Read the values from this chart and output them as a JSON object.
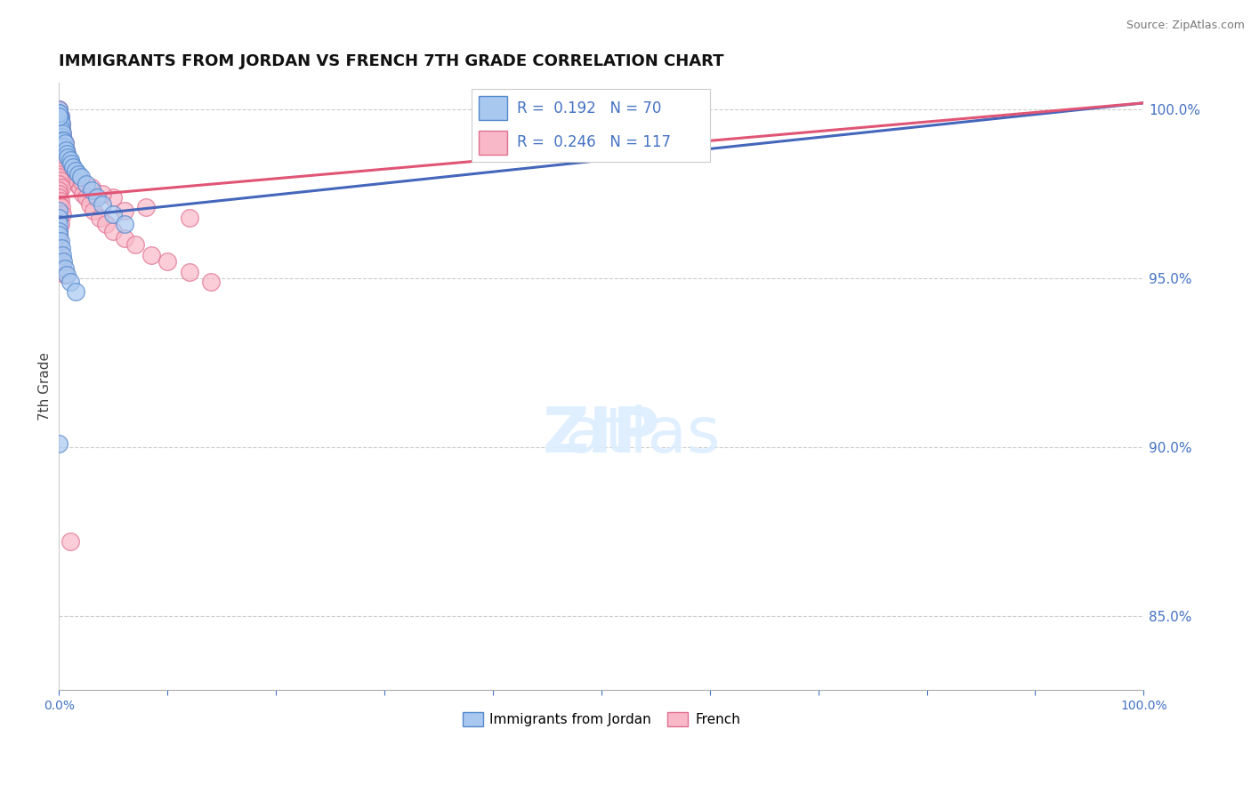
{
  "title": "IMMIGRANTS FROM JORDAN VS FRENCH 7TH GRADE CORRELATION CHART",
  "source": "Source: ZipAtlas.com",
  "ylabel": "7th Grade",
  "legend1_label": "Immigrants from Jordan",
  "legend2_label": "French",
  "R1": 0.192,
  "N1": 70,
  "R2": 0.246,
  "N2": 117,
  "color_jordan": "#A8C8F0",
  "color_french": "#F8B8C8",
  "color_jordan_edge": "#5588CC",
  "color_french_edge": "#E07090",
  "color_jordan_line": "#4466BB",
  "color_french_line": "#E05575",
  "color_jordan_line_dashed": "#88AADD",
  "xmin": 0.0,
  "xmax": 1.0,
  "ymin": 0.828,
  "ymax": 1.008,
  "ytick_right": [
    0.85,
    0.9,
    0.95,
    1.0
  ],
  "ytick_right_labels": [
    "85.0%",
    "90.0%",
    "95.0%",
    "100.0%"
  ],
  "grid_color": "#CCCCCC",
  "background_color": "#FFFFFF",
  "jordan_x": [
    0.0,
    0.0,
    0.0,
    0.0,
    0.0,
    0.0,
    0.0,
    0.0,
    0.0,
    0.0,
    0.0,
    0.0,
    0.0,
    0.0,
    0.0,
    0.0,
    0.0,
    0.0,
    0.0,
    0.0,
    0.001,
    0.001,
    0.001,
    0.001,
    0.001,
    0.001,
    0.001,
    0.001,
    0.001,
    0.002,
    0.002,
    0.002,
    0.002,
    0.003,
    0.003,
    0.004,
    0.004,
    0.005,
    0.006,
    0.007,
    0.008,
    0.01,
    0.011,
    0.013,
    0.015,
    0.018,
    0.02,
    0.025,
    0.03,
    0.035,
    0.04,
    0.05,
    0.06,
    0.0,
    0.0,
    0.0,
    0.0,
    0.0,
    0.001,
    0.002,
    0.003,
    0.004,
    0.005,
    0.007,
    0.01,
    0.015,
    0.0,
    0.0,
    0.0,
    0.0
  ],
  "jordan_y": [
    0.999,
    0.999,
    0.999,
    0.998,
    0.998,
    0.998,
    0.997,
    0.997,
    0.997,
    0.996,
    0.996,
    0.996,
    0.995,
    0.995,
    0.994,
    0.994,
    0.993,
    0.993,
    0.992,
    0.991,
    0.998,
    0.997,
    0.996,
    0.995,
    0.994,
    0.993,
    0.992,
    0.991,
    0.99,
    0.996,
    0.994,
    0.992,
    0.99,
    0.993,
    0.991,
    0.991,
    0.989,
    0.99,
    0.988,
    0.987,
    0.986,
    0.985,
    0.984,
    0.983,
    0.982,
    0.981,
    0.98,
    0.978,
    0.976,
    0.974,
    0.972,
    0.969,
    0.966,
    0.97,
    0.968,
    0.966,
    0.964,
    0.963,
    0.961,
    0.959,
    0.957,
    0.955,
    0.953,
    0.951,
    0.949,
    0.946,
    1.0,
    0.999,
    0.998,
    0.901
  ],
  "french_x": [
    0.0,
    0.0,
    0.0,
    0.0,
    0.0,
    0.0,
    0.0,
    0.0,
    0.0,
    0.0,
    0.0,
    0.0,
    0.0,
    0.0,
    0.0,
    0.0,
    0.0,
    0.0,
    0.0,
    0.0,
    0.0,
    0.0,
    0.0,
    0.0,
    0.001,
    0.001,
    0.001,
    0.001,
    0.001,
    0.001,
    0.001,
    0.002,
    0.002,
    0.002,
    0.003,
    0.003,
    0.003,
    0.004,
    0.004,
    0.005,
    0.005,
    0.006,
    0.007,
    0.008,
    0.009,
    0.01,
    0.011,
    0.012,
    0.013,
    0.015,
    0.017,
    0.019,
    0.022,
    0.025,
    0.028,
    0.032,
    0.037,
    0.043,
    0.05,
    0.06,
    0.07,
    0.085,
    0.1,
    0.12,
    0.14,
    0.0,
    0.001,
    0.002,
    0.003,
    0.004,
    0.006,
    0.009,
    0.013,
    0.02,
    0.03,
    0.05,
    0.08,
    0.12,
    0.04,
    0.06,
    0.0,
    0.001,
    0.002,
    0.003,
    0.005,
    0.0,
    0.0,
    0.001,
    0.0,
    0.0,
    0.001,
    0.0,
    0.002,
    0.0,
    0.0,
    0.001,
    0.0,
    0.002,
    0.0,
    0.0,
    0.0,
    0.001,
    0.0,
    0.002,
    0.003,
    0.0,
    0.001,
    0.0,
    0.0,
    0.0,
    0.0,
    0.0,
    0.0,
    0.001,
    0.003,
    0.005,
    0.01
  ],
  "french_y": [
    1.0,
    1.0,
    0.999,
    0.999,
    0.999,
    0.998,
    0.998,
    0.998,
    0.997,
    0.997,
    0.997,
    0.996,
    0.996,
    0.995,
    0.995,
    0.994,
    0.994,
    0.993,
    0.993,
    0.992,
    0.992,
    0.991,
    0.991,
    0.99,
    0.998,
    0.997,
    0.996,
    0.995,
    0.994,
    0.993,
    0.992,
    0.996,
    0.994,
    0.992,
    0.993,
    0.992,
    0.99,
    0.991,
    0.989,
    0.99,
    0.988,
    0.988,
    0.987,
    0.986,
    0.985,
    0.984,
    0.983,
    0.982,
    0.981,
    0.98,
    0.978,
    0.977,
    0.975,
    0.974,
    0.972,
    0.97,
    0.968,
    0.966,
    0.964,
    0.962,
    0.96,
    0.957,
    0.955,
    0.952,
    0.949,
    0.991,
    0.99,
    0.989,
    0.988,
    0.987,
    0.985,
    0.983,
    0.981,
    0.979,
    0.977,
    0.974,
    0.971,
    0.968,
    0.975,
    0.97,
    0.985,
    0.984,
    0.983,
    0.981,
    0.979,
    0.988,
    0.987,
    0.986,
    0.986,
    0.985,
    0.984,
    0.983,
    0.982,
    0.981,
    0.98,
    0.979,
    0.978,
    0.977,
    0.976,
    0.975,
    0.974,
    0.973,
    0.972,
    0.971,
    0.969,
    0.968,
    0.966,
    0.964,
    0.963,
    0.961,
    0.96,
    0.958,
    0.956,
    0.955,
    0.953,
    0.951,
    0.872
  ],
  "jordan_trend_x0": 0.0,
  "jordan_trend_x1": 1.0,
  "jordan_trend_y0": 0.968,
  "jordan_trend_y1": 1.002,
  "french_trend_x0": 0.0,
  "french_trend_x1": 1.0,
  "french_trend_y0": 0.974,
  "french_trend_y1": 1.002
}
